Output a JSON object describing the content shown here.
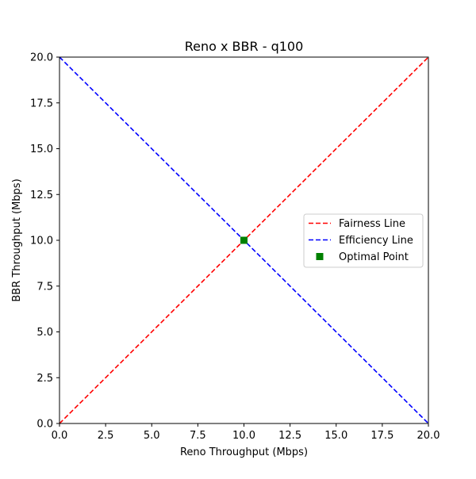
{
  "chart_data": {
    "type": "line",
    "title": "Reno x BBR - q100",
    "xlabel": "Reno Throughput (Mbps)",
    "ylabel": "BBR Throughput (Mbps)",
    "xlim": [
      0,
      20
    ],
    "ylim": [
      0,
      20
    ],
    "x_ticks": [
      0,
      2.5,
      5,
      7.5,
      10,
      12.5,
      15,
      17.5,
      20
    ],
    "y_ticks": [
      0,
      2.5,
      5,
      7.5,
      10,
      12.5,
      15,
      17.5,
      20
    ],
    "x_tick_labels": [
      "0.0",
      "2.5",
      "5.0",
      "7.5",
      "10.0",
      "12.5",
      "15.0",
      "17.5",
      "20.0"
    ],
    "y_tick_labels": [
      "0.0",
      "2.5",
      "5.0",
      "7.5",
      "10.0",
      "12.5",
      "15.0",
      "17.5",
      "20.0"
    ],
    "grid": false,
    "legend_position": "center-right",
    "series": [
      {
        "name": "Fairness Line",
        "kind": "line",
        "style": "dashed",
        "color": "#ff0000",
        "points": [
          [
            0,
            0
          ],
          [
            20,
            20
          ]
        ]
      },
      {
        "name": "Efficiency Line",
        "kind": "line",
        "style": "dashed",
        "color": "#0000ff",
        "points": [
          [
            0,
            20
          ],
          [
            20,
            0
          ]
        ]
      },
      {
        "name": "Optimal Point",
        "kind": "marker",
        "marker": "square",
        "color": "#008000",
        "points": [
          [
            10,
            10
          ]
        ]
      }
    ]
  }
}
